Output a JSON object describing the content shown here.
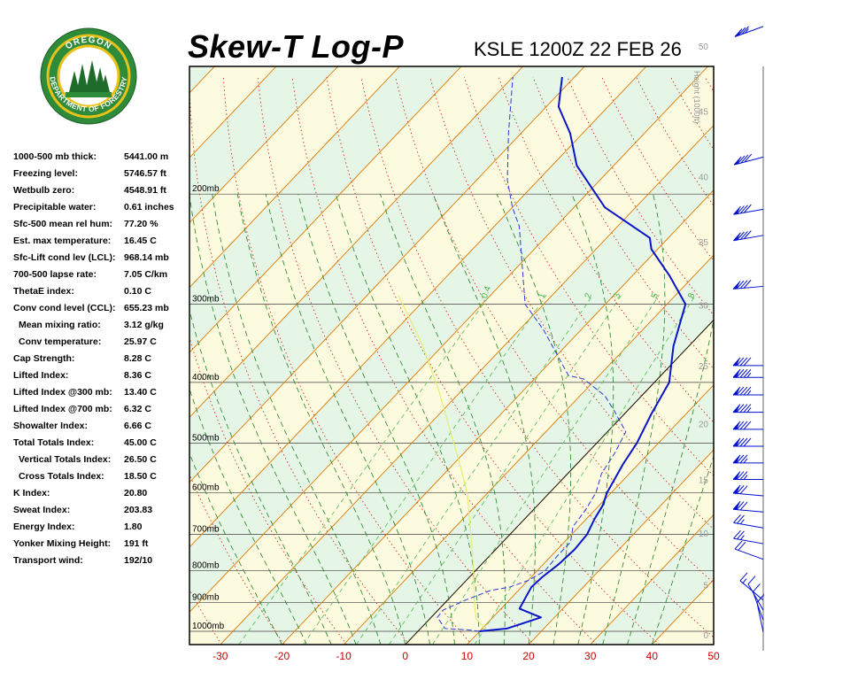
{
  "header": {
    "title": "Skew-T Log-P",
    "station": "KSLE 1200Z 22 FEB 26"
  },
  "logo": {
    "top_text": "OREGON",
    "ring_text": "DEPARTMENT OF FORESTRY",
    "colors": {
      "ring": "#2e8b3a",
      "gold": "#e8c21a",
      "tree": "#1f6b2a",
      "sky": "#ffffff"
    }
  },
  "indices": [
    {
      "label": "1000-500 mb thick:",
      "value": "5441.00 m"
    },
    {
      "label": "Freezing level:",
      "value": "5746.57 ft"
    },
    {
      "label": "Wetbulb zero:",
      "value": "4548.91 ft"
    },
    {
      "label": "Precipitable water:",
      "value": "0.61 inches"
    },
    {
      "label": "Sfc-500 mean rel hum:",
      "value": "77.20 %"
    },
    {
      "label": "Est. max temperature:",
      "value": "16.45 C"
    },
    {
      "label": "Sfc-Lift cond lev (LCL):",
      "value": "968.14 mb"
    },
    {
      "label": "700-500 lapse rate:",
      "value": "7.05 C/km"
    },
    {
      "label": "ThetaE index:",
      "value": "0.10 C"
    },
    {
      "label": "Conv cond level (CCL):",
      "value": "655.23 mb"
    },
    {
      "label": "Mean mixing ratio:",
      "value": "3.12 g/kg",
      "indent": true
    },
    {
      "label": "Conv temperature:",
      "value": "25.97 C",
      "indent": true
    },
    {
      "label": "Cap Strength:",
      "value": "8.28 C"
    },
    {
      "label": "Lifted Index:",
      "value": "8.36 C"
    },
    {
      "label": "Lifted Index @300 mb:",
      "value": "13.40 C"
    },
    {
      "label": "Lifted Index @700 mb:",
      "value": "6.32 C"
    },
    {
      "label": "Showalter Index:",
      "value": "6.66 C"
    },
    {
      "label": "Total Totals Index:",
      "value": "45.00 C"
    },
    {
      "label": "Vertical Totals Index:",
      "value": "26.50 C",
      "indent": true
    },
    {
      "label": "Cross Totals Index:",
      "value": "18.50 C",
      "indent": true
    },
    {
      "label": "K Index:",
      "value": "20.80"
    },
    {
      "label": "Sweat Index:",
      "value": "203.83"
    },
    {
      "label": "Energy Index:",
      "value": "1.80"
    },
    {
      "label": "Yonker Mixing Height:",
      "value": "191 ft"
    },
    {
      "label": "Transport wind:",
      "value": "192/10"
    }
  ],
  "chart_data": {
    "type": "line",
    "title": "Skew-T Log-P",
    "xlim": [
      -35,
      50
    ],
    "x_ticks": [
      -30,
      -20,
      -10,
      0,
      10,
      20,
      30,
      40,
      50
    ],
    "pressure_levels": [
      "1000mb",
      "900mb",
      "800mb",
      "700mb",
      "600mb",
      "500mb",
      "400mb",
      "300mb",
      "200mb"
    ],
    "pressure_values": [
      1000,
      900,
      800,
      700,
      600,
      500,
      400,
      300,
      200
    ],
    "pressure_top": 125,
    "height_axis_label": "Height (1000ft)",
    "height_ticks": [
      0,
      5,
      10,
      15,
      20,
      25,
      30,
      35,
      40,
      45,
      50
    ],
    "mixing_ratio_labels": [
      "0.4",
      "1",
      "2",
      "3",
      "5",
      "8"
    ],
    "mixing_ratio_values": [
      0.4,
      1,
      2,
      3,
      5,
      8
    ],
    "colors": {
      "temperature": "#0a14c8",
      "dewpoint": "#2a3ad8",
      "parcel": "#e6ee70",
      "isotherm": "#e07800",
      "dry_adiabat": "#d03020",
      "moist_adiabat": "#208020",
      "mixing_ratio": "#60c060",
      "band_yellow": "#fdfbdf",
      "band_green": "#e6f6e6",
      "isobar": "#404040",
      "wind": "#0010d0"
    },
    "series": [
      {
        "name": "Temperature",
        "points": [
          [
            10,
            1000
          ],
          [
            14,
            990
          ],
          [
            17.8,
            950
          ],
          [
            13,
            920
          ],
          [
            12.2,
            880
          ],
          [
            11.6,
            850
          ],
          [
            11.8,
            820
          ],
          [
            12.5,
            780
          ],
          [
            12.8,
            740
          ],
          [
            12.5,
            700
          ],
          [
            11.3,
            660
          ],
          [
            10.6,
            630
          ],
          [
            9.3,
            600
          ],
          [
            7.5,
            540
          ],
          [
            6.5,
            500
          ],
          [
            4.4,
            450
          ],
          [
            2.4,
            400
          ],
          [
            -2.5,
            350
          ],
          [
            -7,
            300
          ],
          [
            -14,
            270
          ],
          [
            -21,
            245
          ],
          [
            -23,
            235
          ],
          [
            -35,
            210
          ],
          [
            -46,
            180
          ],
          [
            -52,
            160
          ],
          [
            -58,
            145
          ],
          [
            -62,
            130
          ]
        ]
      },
      {
        "name": "Dewpoint",
        "points": [
          [
            10,
            1000
          ],
          [
            8,
            995
          ],
          [
            4,
            990
          ],
          [
            1,
            950
          ],
          [
            0.8,
            925
          ],
          [
            3,
            890
          ],
          [
            5.5,
            860
          ],
          [
            8,
            850
          ],
          [
            10,
            830
          ],
          [
            11.3,
            800
          ],
          [
            11,
            760
          ],
          [
            11,
            720
          ],
          [
            9,
            680
          ],
          [
            8.5,
            640
          ],
          [
            7.5,
            600
          ],
          [
            5.5,
            560
          ],
          [
            4.5,
            520
          ],
          [
            3,
            480
          ],
          [
            -2,
            445
          ],
          [
            -6,
            420
          ],
          [
            -12,
            395
          ],
          [
            -15,
            390
          ],
          [
            -26,
            330
          ],
          [
            -33,
            300
          ],
          [
            -46,
            225
          ],
          [
            -50,
            210
          ],
          [
            -55,
            190
          ],
          [
            -62,
            160
          ],
          [
            -70,
            130
          ]
        ]
      },
      {
        "name": "Parcel",
        "points": [
          [
            10.5,
            990
          ],
          [
            7.5,
            955
          ],
          [
            5.5,
            915
          ],
          [
            3,
            865
          ],
          [
            0.5,
            815
          ],
          [
            -3.5,
            745
          ],
          [
            -8,
            675
          ],
          [
            -13,
            605
          ],
          [
            -19,
            540
          ],
          [
            -26,
            475
          ],
          [
            -34,
            410
          ],
          [
            -44,
            345
          ],
          [
            -55,
            290
          ]
        ]
      }
    ],
    "wind_barbs": [
      {
        "height_kft": 0.3,
        "dir": 192,
        "speed": 10
      },
      {
        "height_kft": 1.5,
        "dir": 200,
        "speed": 10
      },
      {
        "height_kft": 2.5,
        "dir": 210,
        "speed": 10
      },
      {
        "height_kft": 3.5,
        "dir": 230,
        "speed": 15
      },
      {
        "height_kft": 7.5,
        "dir": 250,
        "speed": 20
      },
      {
        "height_kft": 9.0,
        "dir": 260,
        "speed": 25
      },
      {
        "height_kft": 10.5,
        "dir": 260,
        "speed": 25
      },
      {
        "height_kft": 12.0,
        "dir": 265,
        "speed": 30
      },
      {
        "height_kft": 13.5,
        "dir": 265,
        "speed": 30
      },
      {
        "height_kft": 15.0,
        "dir": 270,
        "speed": 35
      },
      {
        "height_kft": 16.5,
        "dir": 270,
        "speed": 35
      },
      {
        "height_kft": 18.0,
        "dir": 270,
        "speed": 40
      },
      {
        "height_kft": 19.5,
        "dir": 270,
        "speed": 40
      },
      {
        "height_kft": 21.0,
        "dir": 270,
        "speed": 45
      },
      {
        "height_kft": 22.5,
        "dir": 270,
        "speed": 45
      },
      {
        "height_kft": 24.0,
        "dir": 270,
        "speed": 45
      },
      {
        "height_kft": 25.0,
        "dir": 270,
        "speed": 40
      },
      {
        "height_kft": 31.5,
        "dir": 275,
        "speed": 40
      },
      {
        "height_kft": 35.5,
        "dir": 280,
        "speed": 40
      },
      {
        "height_kft": 37.5,
        "dir": 280,
        "speed": 40
      },
      {
        "height_kft": 41.5,
        "dir": 285,
        "speed": 40
      },
      {
        "height_kft": 51.5,
        "dir": 290,
        "speed": 35
      }
    ]
  }
}
